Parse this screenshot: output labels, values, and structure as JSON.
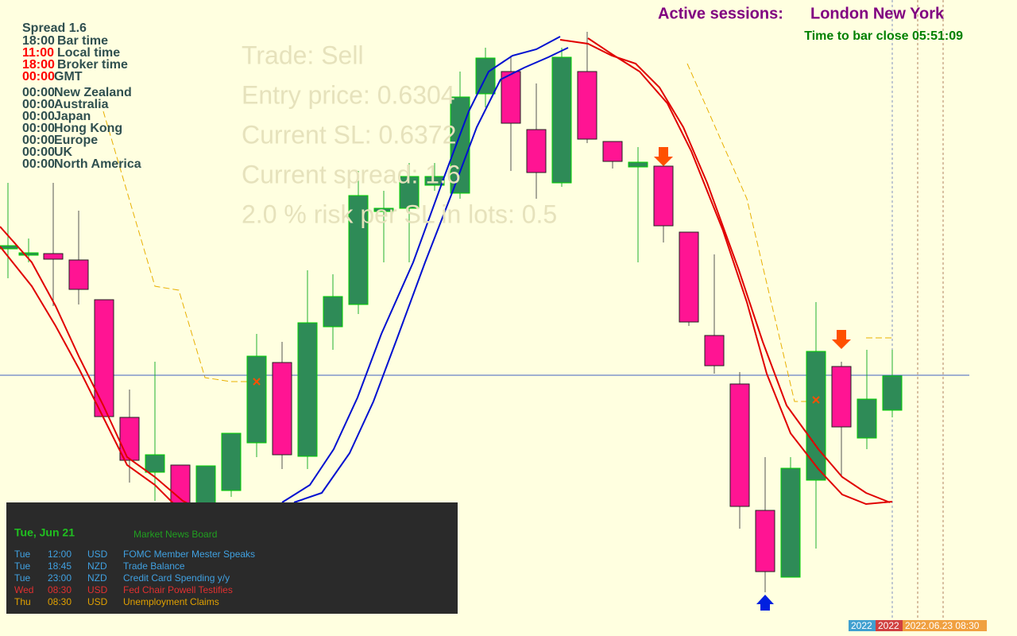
{
  "sessions": {
    "title": "Active sessions:",
    "names": "London New York",
    "countdown": "Time to bar close 05:51:09"
  },
  "clock_panel": {
    "spread": "Spread 1.6",
    "rows": [
      {
        "time": "18:00",
        "label": "Bar time"
      },
      {
        "time": "11:00",
        "label": "Local time"
      },
      {
        "time": "18:00",
        "label": "Broker time"
      },
      {
        "time": "00:00",
        "label": "GMT"
      },
      {
        "time": "00:00",
        "label": "New Zealand"
      },
      {
        "time": "00:00",
        "label": "Australia"
      },
      {
        "time": "00:00",
        "label": "Japan"
      },
      {
        "time": "00:00",
        "label": "Hong Kong"
      },
      {
        "time": "00:00",
        "label": "Europe"
      },
      {
        "time": "00:00",
        "label": "UK"
      },
      {
        "time": "00:00",
        "label": "North America"
      }
    ]
  },
  "trade_panel": {
    "lines": [
      "Trade: Sell",
      "Entry price: 0.6304",
      "Current SL: 0.6372",
      "Current spread: 1.6",
      "2.0 % risk per SL in lots: 0.5"
    ]
  },
  "news": {
    "date": "Tue, Jun 21",
    "header": "Market News Board",
    "rows": [
      [
        "Tue",
        "12:00",
        "USD",
        "FOMC Member Mester Speaks"
      ],
      [
        "Tue",
        "18:45",
        "NZD",
        "Trade Balance"
      ],
      [
        "Tue",
        "23:00",
        "NZD",
        "Credit Card Spending y/y"
      ],
      [
        "Wed",
        "08:30",
        "USD",
        "Fed Chair Powell Testifies"
      ],
      [
        "Thu",
        "08:30",
        "USD",
        "Unemployment Claims"
      ]
    ]
  },
  "time_axis": [
    "2022",
    "2022",
    "2022.06.23 08:30"
  ]
}
